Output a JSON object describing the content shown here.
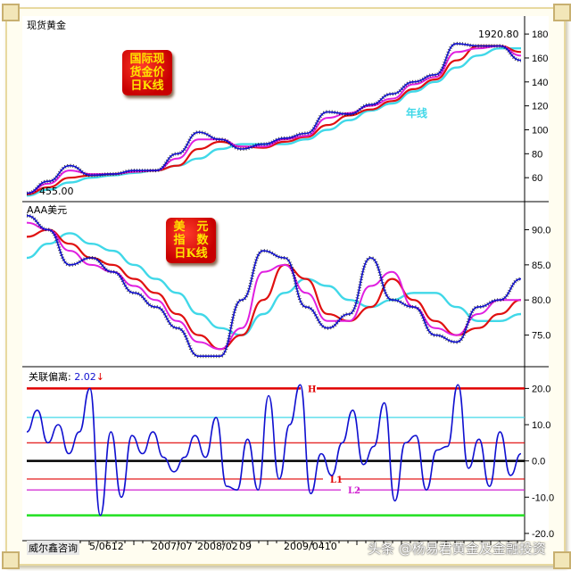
{
  "panels": {
    "gold": {
      "title": "现货黄金",
      "badge": [
        "国际现",
        "货金价",
        "日K线"
      ],
      "high_label": "1920.80",
      "low_label": "455.00",
      "yearline_label": "年线"
    },
    "dollar": {
      "title": "AAA美元",
      "badge": [
        "美　元",
        "指　数",
        "日K线"
      ]
    },
    "indicator": {
      "title": "关联偏离:",
      "value": "2.02",
      "arrow": "↓",
      "labels": {
        "H": "H",
        "L1": "L1",
        "L2": "L2"
      }
    }
  },
  "x_axis": {
    "labels": [
      "威尔鑫咨询",
      "5/0612",
      "2007/07",
      "2008/02",
      "09",
      "2009/0410"
    ]
  },
  "watermark": "头条 @杨易君黄金及金融投资",
  "colors": {
    "price": "#1010d0",
    "ma_fast": "#e020e0",
    "ma_mid": "#e01010",
    "year_line": "#40d8e8",
    "H": "#e00000",
    "upper": "#40d8e8",
    "mid_red": "#e00000",
    "zero": "#000000",
    "L1": "#e00000",
    "L2": "#d020d0",
    "low": "#20e020",
    "badge_text": "#ffe400"
  },
  "chart_data": [
    {
      "type": "line",
      "title": "现货黄金",
      "ylim": [
        40,
        195
      ],
      "yticks": [
        60,
        80,
        100,
        120,
        140,
        160,
        180
      ],
      "series": [
        {
          "key": "price",
          "values": [
            47,
            57,
            70,
            62,
            63,
            66,
            66,
            80,
            98,
            92,
            84,
            88,
            93,
            97,
            115,
            113,
            121,
            130,
            140,
            146,
            172,
            170,
            170,
            158
          ]
        },
        {
          "key": "ma_fast",
          "values": [
            47,
            55,
            66,
            63,
            63,
            65,
            66,
            76,
            92,
            92,
            86,
            86,
            92,
            95,
            110,
            114,
            120,
            126,
            138,
            144,
            165,
            168,
            170,
            162
          ]
        },
        {
          "key": "ma_mid",
          "values": [
            46,
            52,
            60,
            62,
            63,
            65,
            66,
            70,
            84,
            90,
            86,
            85,
            90,
            94,
            104,
            112,
            117,
            124,
            134,
            142,
            158,
            170,
            170,
            165
          ]
        },
        {
          "key": "year_line",
          "name": "年线",
          "values": [
            45,
            50,
            56,
            60,
            62,
            64,
            66,
            70,
            76,
            84,
            88,
            88,
            88,
            92,
            100,
            108,
            116,
            122,
            132,
            140,
            152,
            162,
            168,
            168
          ]
        }
      ]
    },
    {
      "type": "line",
      "title": "AAA美元",
      "ylim": [
        70.5,
        94
      ],
      "yticks": [
        75.0,
        80.0,
        85.0,
        90.0
      ],
      "series": [
        {
          "key": "price",
          "values": [
            92,
            90,
            85,
            86,
            84,
            81,
            79,
            76,
            72,
            72,
            80,
            87,
            86,
            79,
            76,
            78,
            86,
            80,
            79,
            75,
            74,
            79,
            80,
            83
          ]
        },
        {
          "key": "ma_fast",
          "values": [
            91,
            90,
            87,
            85,
            84,
            82,
            80,
            77,
            74,
            73,
            76,
            84,
            85,
            81,
            77,
            77,
            82,
            84,
            79,
            76,
            75,
            78,
            80,
            80
          ]
        },
        {
          "key": "ma_mid",
          "values": [
            89,
            90,
            88,
            86,
            85,
            83,
            81,
            78,
            75,
            73,
            75,
            80,
            85,
            83,
            78,
            77,
            79,
            83,
            80,
            77,
            75,
            76,
            78,
            80
          ]
        },
        {
          "key": "year_line",
          "values": [
            86,
            88,
            89.5,
            88,
            87,
            85,
            83,
            81,
            78,
            76,
            75,
            78,
            81,
            83,
            82,
            80,
            79,
            80,
            81,
            81,
            79,
            77,
            77,
            78
          ]
        }
      ]
    },
    {
      "type": "line",
      "title": "关联偏离",
      "ylim": [
        -22,
        26
      ],
      "yticks": [
        -20.0,
        -10.0,
        0.0,
        10.0,
        20.0
      ],
      "series": [
        {
          "key": "price",
          "values": [
            8,
            14,
            5,
            10,
            2,
            8,
            20,
            -15,
            8,
            -10,
            7,
            2,
            8,
            1,
            -3,
            1,
            7,
            1,
            12,
            -7,
            -8,
            6,
            -8,
            18,
            -5,
            10,
            21,
            -9,
            2,
            -4,
            5,
            14,
            -1,
            4,
            16,
            -11,
            5,
            7,
            -8,
            3,
            4,
            21,
            -2,
            6,
            -7,
            8,
            -4,
            2
          ]
        }
      ],
      "reference_lines": [
        {
          "key": "H",
          "value": 20,
          "label": "H"
        },
        {
          "key": "upper",
          "value": 12
        },
        {
          "key": "mid_red",
          "value": 5
        },
        {
          "key": "zero",
          "value": 0
        },
        {
          "key": "L1",
          "value": -5,
          "label": "L1"
        },
        {
          "key": "L2",
          "value": -8,
          "label": "L2"
        },
        {
          "key": "low",
          "value": -15
        }
      ]
    }
  ]
}
